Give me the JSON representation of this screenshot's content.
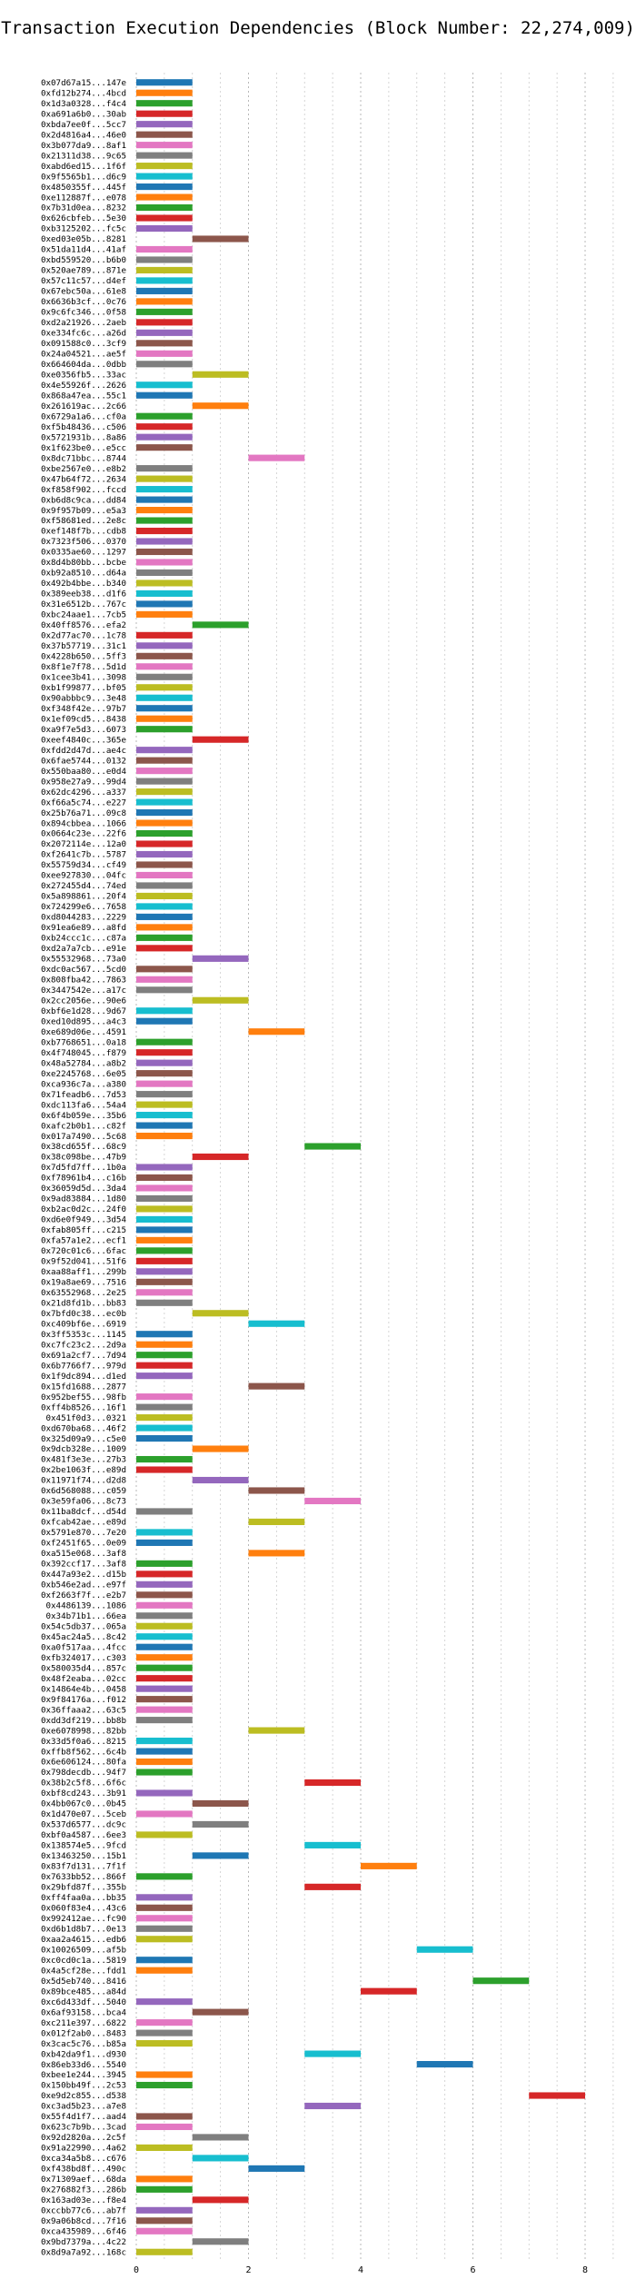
{
  "chart_data": {
    "type": "bar",
    "orientation": "horizontal",
    "title": "Transaction Execution Dependencies (Block Number: 22,274,009)",
    "xlabel": "",
    "ylabel": "",
    "xlim": [
      0,
      8.5
    ],
    "xticks": [
      0,
      2,
      4,
      6,
      8
    ],
    "grid": true,
    "legend": "none",
    "colors": [
      "#1f77b4",
      "#ff7f0e",
      "#2ca02c",
      "#d62728",
      "#9467bd",
      "#8c564b",
      "#e377c2",
      "#7f7f7f",
      "#bcbd22",
      "#17becf"
    ],
    "rows": [
      [
        "0x07d67a15...147e",
        0
      ],
      [
        "0xfd12b274...4bcd",
        0
      ],
      [
        "0x1d3a0328...f4c4",
        0
      ],
      [
        "0xa691a6b0...30ab",
        0
      ],
      [
        "0xbda7ee0f...5cc7",
        0
      ],
      [
        "0x2d4816a4...46e0",
        0
      ],
      [
        "0x3b077da9...8af1",
        0
      ],
      [
        "0x21311d38...9c65",
        0
      ],
      [
        "0xabd6ed15...1f6f",
        0
      ],
      [
        "0x9f5565b1...d6c9",
        0
      ],
      [
        "0x4850355f...445f",
        0
      ],
      [
        "0xe112887f...e078",
        0
      ],
      [
        "0x7b31d0ea...8232",
        0
      ],
      [
        "0x626cbfeb...5e30",
        0
      ],
      [
        "0xb3125202...fc5c",
        0
      ],
      [
        "0xed03e05b...8281",
        1
      ],
      [
        "0x51da11d4...41af",
        0
      ],
      [
        "0xbd559520...b6b0",
        0
      ],
      [
        "0x520ae789...871e",
        0
      ],
      [
        "0x57c11c57...d4ef",
        0
      ],
      [
        "0x67ebc50a...61e8",
        0
      ],
      [
        "0x6636b3cf...0c76",
        0
      ],
      [
        "0x9c6fc346...0f58",
        0
      ],
      [
        "0xd2a21926...2aeb",
        0
      ],
      [
        "0xe334fc6c...a26d",
        0
      ],
      [
        "0x091588c0...3cf9",
        0
      ],
      [
        "0x24a04521...ae5f",
        0
      ],
      [
        "0x664604da...0dbb",
        0
      ],
      [
        "0xe0356fb5...33ac",
        1
      ],
      [
        "0x4e55926f...2626",
        0
      ],
      [
        "0x868a47ea...55c1",
        0
      ],
      [
        "0x261619ac...2c66",
        1
      ],
      [
        "0x6729a1a6...cf0a",
        0
      ],
      [
        "0xf5b48436...c506",
        0
      ],
      [
        "0x5721931b...8a86",
        0
      ],
      [
        "0x1f623be0...e5cc",
        0
      ],
      [
        "0x8dc71bbc...8744",
        2
      ],
      [
        "0xbe2567e0...e8b2",
        0
      ],
      [
        "0x47b64f72...2634",
        0
      ],
      [
        "0xf858f902...fccd",
        0
      ],
      [
        "0xb6d8c9ca...dd84",
        0
      ],
      [
        "0x9f957b09...e5a3",
        0
      ],
      [
        "0xf58681ed...2e8c",
        0
      ],
      [
        "0xef148f7b...cdb8",
        0
      ],
      [
        "0x7323f506...0370",
        0
      ],
      [
        "0x0335ae60...1297",
        0
      ],
      [
        "0x8d4b80bb...bcbe",
        0
      ],
      [
        "0xb92a8510...d64a",
        0
      ],
      [
        "0x492b4bbe...b340",
        0
      ],
      [
        "0x389eeb38...d1f6",
        0
      ],
      [
        "0x31e6512b...767c",
        0
      ],
      [
        "0xbc24aae1...7cb5",
        0
      ],
      [
        "0x40ff8576...efa2",
        1
      ],
      [
        "0x2d77ac70...1c78",
        0
      ],
      [
        "0x37b57719...31c1",
        0
      ],
      [
        "0x4228b650...5ff3",
        0
      ],
      [
        "0x8f1e7f78...5d1d",
        0
      ],
      [
        "0x1cee3b41...3098",
        0
      ],
      [
        "0xb1f99877...bf05",
        0
      ],
      [
        "0x90abbbc9...3e48",
        0
      ],
      [
        "0xf348f42e...97b7",
        0
      ],
      [
        "0x1ef09cd5...8438",
        0
      ],
      [
        "0xa9f7e5d3...6073",
        0
      ],
      [
        "0xeef4840c...365e",
        1
      ],
      [
        "0xfdd2d47d...ae4c",
        0
      ],
      [
        "0x6fae5744...0132",
        0
      ],
      [
        "0x550baa80...e0d4",
        0
      ],
      [
        "0x958e27a9...99d4",
        0
      ],
      [
        "0x62dc4296...a337",
        0
      ],
      [
        "0xf66a5c74...e227",
        0
      ],
      [
        "0x25b76a71...09c8",
        0
      ],
      [
        "0x894cbbea...1066",
        0
      ],
      [
        "0x0664c23e...22f6",
        0
      ],
      [
        "0x2072114e...12a0",
        0
      ],
      [
        "0xf2641c7b...5787",
        0
      ],
      [
        "0x55759d34...cf49",
        0
      ],
      [
        "0xee927830...04fc",
        0
      ],
      [
        "0x272455d4...74ed",
        0
      ],
      [
        "0x5a898861...20f4",
        0
      ],
      [
        "0x724299e6...7658",
        0
      ],
      [
        "0xd8044283...2229",
        0
      ],
      [
        "0x91ea6e89...a8fd",
        0
      ],
      [
        "0xb24ccc1c...c87a",
        0
      ],
      [
        "0xd2a7a7cb...e91e",
        0
      ],
      [
        "0x55532968...73a0",
        1
      ],
      [
        "0xdc0ac567...5cd0",
        0
      ],
      [
        "0x808fba42...7863",
        0
      ],
      [
        "0x3447542e...a17c",
        0
      ],
      [
        "0x2cc2056e...90e6",
        1
      ],
      [
        "0xbf6e1d28...9d67",
        0
      ],
      [
        "0xed10d895...a4c3",
        0
      ],
      [
        "0xe689d06e...4591",
        2
      ],
      [
        "0xb7768651...0a18",
        0
      ],
      [
        "0x4f748045...f879",
        0
      ],
      [
        "0x48a52784...a8b2",
        0
      ],
      [
        "0xe2245768...6e05",
        0
      ],
      [
        "0xca936c7a...a380",
        0
      ],
      [
        "0x71feadb6...7d53",
        0
      ],
      [
        "0xdc113fa6...54a4",
        0
      ],
      [
        "0x6f4b059e...35b6",
        0
      ],
      [
        "0xafc2b0b1...c82f",
        0
      ],
      [
        "0x017a7490...5c68",
        0
      ],
      [
        "0x38cd655f...68c9",
        3
      ],
      [
        "0x38c098be...47b9",
        1
      ],
      [
        "0x7d5fd7ff...1b0a",
        0
      ],
      [
        "0xf78961b4...c16b",
        0
      ],
      [
        "0x36059d5d...3da4",
        0
      ],
      [
        "0x9ad83884...1d80",
        0
      ],
      [
        "0xb2ac0d2c...24f0",
        0
      ],
      [
        "0xd6e0f949...3d54",
        0
      ],
      [
        "0xfab805ff...c215",
        0
      ],
      [
        "0xfa57a1e2...ecf1",
        0
      ],
      [
        "0x720c01c6...6fac",
        0
      ],
      [
        "0x9f52d041...51f6",
        0
      ],
      [
        "0xaa88aff1...299b",
        0
      ],
      [
        "0x19a8ae69...7516",
        0
      ],
      [
        "0x63552968...2e25",
        0
      ],
      [
        "0x21d8fd1b...bb83",
        0
      ],
      [
        "0x7bfd0c38...ec0b",
        1
      ],
      [
        "0xc409bf6e...6919",
        2
      ],
      [
        "0x3ff5353c...1145",
        0
      ],
      [
        "0xc7fc23c2...2d9a",
        0
      ],
      [
        "0x691a2cf7...7d94",
        0
      ],
      [
        "0x6b7766f7...979d",
        0
      ],
      [
        "0x1f9dc894...d1ed",
        0
      ],
      [
        "0x15fd1688...2877",
        2
      ],
      [
        "0x952bef55...98fb",
        0
      ],
      [
        "0xff4b8526...16f1",
        0
      ],
      [
        "0x451f0d3...0321",
        0
      ],
      [
        "0xd670ba68...46f2",
        0
      ],
      [
        "0x325d09a9...c5e0",
        0
      ],
      [
        "0x9dcb328e...1009",
        1
      ],
      [
        "0x481f3e3e...27b3",
        0
      ],
      [
        "0x2be1063f...e89d",
        0
      ],
      [
        "0x11971f74...d2d8",
        1
      ],
      [
        "0x6d568088...c059",
        2
      ],
      [
        "0x3e59fa06...8c73",
        3
      ],
      [
        "0x11ba8dcf...d54d",
        0
      ],
      [
        "0xfcab42ae...e89d",
        2
      ],
      [
        "0x5791e870...7e20",
        0
      ],
      [
        "0xf2451f65...0e09",
        0
      ],
      [
        "0xa515e068...3af8",
        2
      ],
      [
        "0x392ccf17...3af8",
        0
      ],
      [
        "0x447a93e2...d15b",
        0
      ],
      [
        "0xb546e2ad...e97f",
        0
      ],
      [
        "0xf2663f7f...e2b7",
        0
      ],
      [
        "0x4486139...1086",
        0
      ],
      [
        "0x34b71b1...66ea",
        0
      ],
      [
        "0x54c5db37...065a",
        0
      ],
      [
        "0x45ac24a5...8c42",
        0
      ],
      [
        "0xa0f517aa...4fcc",
        0
      ],
      [
        "0xfb324017...c303",
        0
      ],
      [
        "0x580035d4...857c",
        0
      ],
      [
        "0x48f2eaba...02cc",
        0
      ],
      [
        "0x14864e4b...0458",
        0
      ],
      [
        "0x9f84176a...f012",
        0
      ],
      [
        "0x36ffaaa2...63c5",
        0
      ],
      [
        "0xdd3df219...bb8b",
        0
      ],
      [
        "0xe6078998...82bb",
        2
      ],
      [
        "0x33d5f0a6...8215",
        0
      ],
      [
        "0xffb8f562...6c4b",
        0
      ],
      [
        "0x6e606124...80fa",
        0
      ],
      [
        "0x798decdb...94f7",
        0
      ],
      [
        "0x38b2c5f8...6f6c",
        3
      ],
      [
        "0xbf8cd243...3b91",
        0
      ],
      [
        "0x4bb067c0...0b45",
        1
      ],
      [
        "0x1d470e07...5ceb",
        0
      ],
      [
        "0x537d6577...dc9c",
        1
      ],
      [
        "0xbf0a4587...6ee3",
        0
      ],
      [
        "0x138574e5...9fcd",
        3
      ],
      [
        "0x13463250...15b1",
        1
      ],
      [
        "0x83f7d131...7f1f",
        4
      ],
      [
        "0x7633bb52...866f",
        0
      ],
      [
        "0x29bfd87f...355b",
        3
      ],
      [
        "0xff4faa0a...bb35",
        0
      ],
      [
        "0x060f83e4...43c6",
        0
      ],
      [
        "0x992412ae...fc90",
        0
      ],
      [
        "0xd6b1d8b7...0e13",
        0
      ],
      [
        "0xaa2a4615...edb6",
        0
      ],
      [
        "0x10026509...af5b",
        5
      ],
      [
        "0xc0cd0c1a...5819",
        0
      ],
      [
        "0x4a5cf28e...fdd1",
        0
      ],
      [
        "0x5d5eb740...8416",
        6
      ],
      [
        "0x89bce485...a84d",
        4
      ],
      [
        "0xc6d433df...5040",
        0
      ],
      [
        "0x6af93158...bca4",
        1
      ],
      [
        "0xc211e397...6822",
        0
      ],
      [
        "0x012f2ab0...8483",
        0
      ],
      [
        "0x3cac5c76...b85a",
        0
      ],
      [
        "0xb42da9f1...d930",
        3
      ],
      [
        "0x86eb33d6...5540",
        5
      ],
      [
        "0xbee1e244...3945",
        0
      ],
      [
        "0x150bb49f...2c53",
        0
      ],
      [
        "0xe9d2c855...d538",
        7
      ],
      [
        "0xc3ad5b23...a7e8",
        3
      ],
      [
        "0x55f4d1f7...aad4",
        0
      ],
      [
        "0x623c7b9b...3cad",
        0
      ],
      [
        "0x92d2820a...2c5f",
        1
      ],
      [
        "0x91a22990...4a62",
        0
      ],
      [
        "0xca34a5b8...c676",
        1
      ],
      [
        "0xf438bd8f...490c",
        2
      ],
      [
        "0x71309aef...68da",
        0
      ],
      [
        "0x276882f3...286b",
        0
      ],
      [
        "0x163ad03e...f8e4",
        1
      ],
      [
        "0xccbb77c6...ab7f",
        0
      ],
      [
        "0x9a06b8cd...7f16",
        0
      ],
      [
        "0xca435989...6f46",
        0
      ],
      [
        "0x9bd7379a...4c22",
        1
      ],
      [
        "0x8d9a7a92...168c",
        0
      ]
    ]
  }
}
